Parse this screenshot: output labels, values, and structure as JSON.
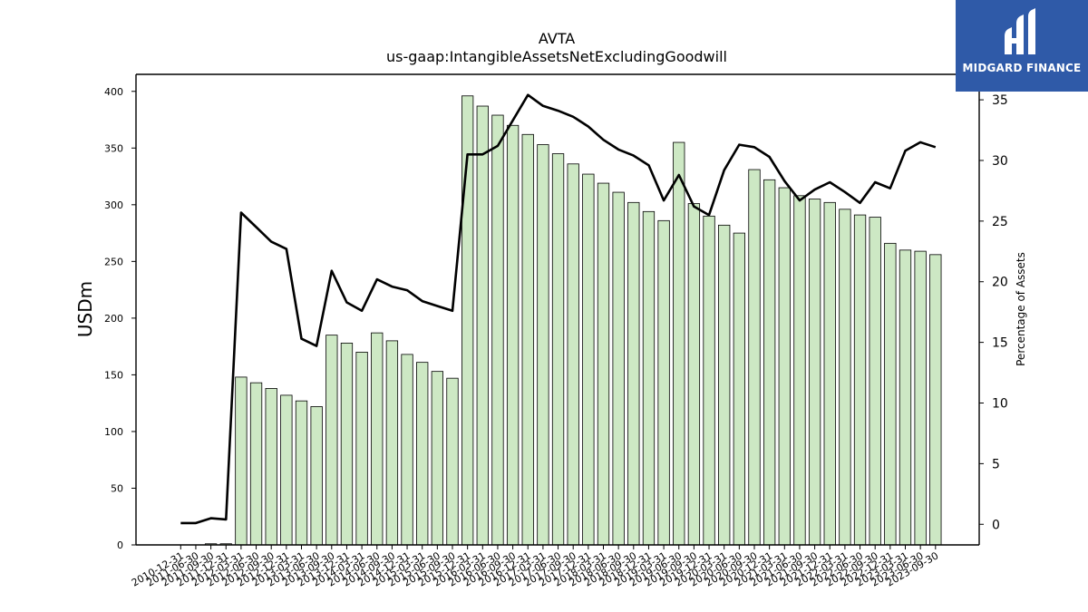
{
  "brand": {
    "name": "MIDGARD FINANCE",
    "bg_color": "#2f5aa8"
  },
  "chart_data": {
    "type": "bar",
    "title": "AVTA",
    "subtitle": "us-gaap:IntangibleAssetsNetExcludingGoodwill",
    "ylabel": "USDm",
    "y2label": "Percentage of Assets",
    "ylim": [
      0,
      415
    ],
    "y2lim": [
      -1.7,
      37.1
    ],
    "yticks": [
      0,
      50,
      100,
      150,
      200,
      250,
      300,
      350,
      400
    ],
    "y2ticks": [
      0,
      5,
      10,
      15,
      20,
      25,
      30,
      35
    ],
    "bar_color": "#cde8c4",
    "line_color": "#000000",
    "categories": [
      "2010-12-31",
      "2011-06-30",
      "2011-09-30",
      "2011-12-31",
      "2012-03-31",
      "2012-06-30",
      "2012-09-30",
      "2012-12-31",
      "2013-03-31",
      "2013-06-30",
      "2013-09-30",
      "2013-12-31",
      "2014-03-31",
      "2014-06-30",
      "2014-09-30",
      "2014-12-31",
      "2015-03-31",
      "2015-06-30",
      "2015-09-30",
      "2015-12-31",
      "2016-03-31",
      "2016-06-30",
      "2016-09-30",
      "2016-12-31",
      "2017-03-31",
      "2017-06-30",
      "2017-09-30",
      "2017-12-31",
      "2018-03-31",
      "2018-06-30",
      "2018-09-30",
      "2018-12-31",
      "2019-03-31",
      "2019-06-30",
      "2019-09-30",
      "2019-12-31",
      "2020-03-31",
      "2020-06-30",
      "2020-09-30",
      "2020-12-31",
      "2021-03-31",
      "2021-06-30",
      "2021-09-30",
      "2021-12-31",
      "2022-03-31",
      "2022-06-30",
      "2022-09-30",
      "2022-12-31",
      "2023-03-31",
      "2023-06-30",
      "2023-09-30"
    ],
    "series": [
      {
        "kind": "bar",
        "axis": "left",
        "values": [
          0,
          0,
          1,
          1,
          148,
          143,
          138,
          132,
          127,
          122,
          185,
          178,
          170,
          187,
          180,
          168,
          161,
          153,
          147,
          396,
          387,
          379,
          370,
          362,
          353,
          345,
          336,
          327,
          319,
          311,
          302,
          294,
          286,
          355,
          301,
          290,
          282,
          275,
          331,
          322,
          315,
          308,
          305,
          302,
          296,
          291,
          289,
          266,
          260,
          259,
          256
        ]
      },
      {
        "kind": "line",
        "axis": "right",
        "values": [
          0.1,
          0.1,
          0.5,
          0.4,
          25.7,
          24.5,
          23.3,
          22.7,
          15.3,
          14.7,
          20.9,
          18.3,
          17.6,
          20.2,
          19.6,
          19.3,
          18.4,
          18.0,
          17.6,
          30.5,
          30.5,
          31.2,
          33.3,
          35.4,
          34.5,
          34.1,
          33.6,
          32.8,
          31.7,
          30.9,
          30.4,
          29.6,
          26.7,
          28.8,
          26.2,
          25.5,
          29.2,
          31.3,
          31.1,
          30.3,
          28.3,
          26.7,
          27.6,
          28.2,
          27.4,
          26.5,
          28.2,
          27.7,
          30.8,
          31.5,
          31.1
        ]
      }
    ]
  }
}
